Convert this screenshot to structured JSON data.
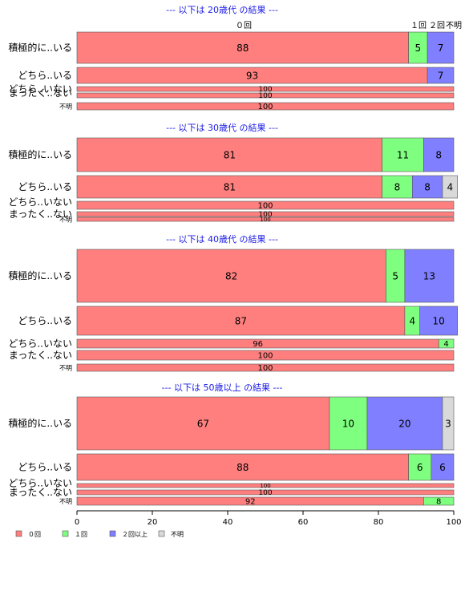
{
  "chart_data": {
    "type": "bar",
    "orientation": "horizontal",
    "stacked": true,
    "xlim": [
      0,
      100
    ],
    "x_ticks": [
      "0",
      "20",
      "40",
      "60",
      "80",
      "100"
    ],
    "series": [
      {
        "name": "０回",
        "color": "#ff7f7f"
      },
      {
        "name": "１回",
        "color": "#7fff7f"
      },
      {
        "name": "２回以上",
        "color": "#7f7fff"
      },
      {
        "name": "不明",
        "color": "#d9d9d9"
      }
    ],
    "top_series_labels": [
      "０回",
      "１回",
      "２回",
      "不明"
    ],
    "legend_placement": "bottom-left",
    "panels": [
      {
        "title": "--- 以下は 20歳代 の結果 ---",
        "rows": [
          {
            "label": "積極的に..いる",
            "values": [
              88,
              5,
              7,
              0
            ]
          },
          {
            "label": "どちら..いる",
            "values": [
              93,
              0,
              7,
              0
            ]
          },
          {
            "label": "どちら..いない",
            "values": [
              100,
              0,
              0,
              0
            ]
          },
          {
            "label": "まったく..ない",
            "values": [
              100,
              0,
              0,
              0
            ]
          },
          {
            "label": "不明",
            "values": [
              100,
              0,
              0,
              0
            ]
          }
        ]
      },
      {
        "title": "--- 以下は 30歳代 の結果 ---",
        "rows": [
          {
            "label": "積極的に..いる",
            "values": [
              81,
              11,
              8,
              0
            ]
          },
          {
            "label": "どちら..いる",
            "values": [
              81,
              8,
              8,
              4
            ]
          },
          {
            "label": "どちら..いない",
            "values": [
              100,
              0,
              0,
              0
            ]
          },
          {
            "label": "まったく..ない",
            "values": [
              100,
              0,
              0,
              0
            ]
          },
          {
            "label": "不明",
            "values": [
              100,
              0,
              0,
              0
            ]
          }
        ]
      },
      {
        "title": "--- 以下は 40歳代 の結果 ---",
        "rows": [
          {
            "label": "積極的に..いる",
            "values": [
              82,
              5,
              13,
              0
            ]
          },
          {
            "label": "どちら..いる",
            "values": [
              87,
              4,
              10,
              0
            ]
          },
          {
            "label": "どちら..いない",
            "values": [
              96,
              4,
              0,
              0
            ]
          },
          {
            "label": "まったく..ない",
            "values": [
              100,
              0,
              0,
              0
            ]
          },
          {
            "label": "不明",
            "values": [
              100,
              0,
              0,
              0
            ]
          }
        ]
      },
      {
        "title": "--- 以下は 50歳以上 の結果 ---",
        "rows": [
          {
            "label": "積極的に..いる",
            "values": [
              67,
              10,
              20,
              3
            ]
          },
          {
            "label": "どちら..いる",
            "values": [
              88,
              6,
              6,
              0
            ]
          },
          {
            "label": "どちら..いない",
            "values": [
              100,
              0,
              0,
              0
            ]
          },
          {
            "label": "まったく..ない",
            "values": [
              100,
              0,
              0,
              0
            ]
          },
          {
            "label": "不明",
            "values": [
              92,
              8,
              0,
              0
            ]
          }
        ]
      }
    ]
  }
}
